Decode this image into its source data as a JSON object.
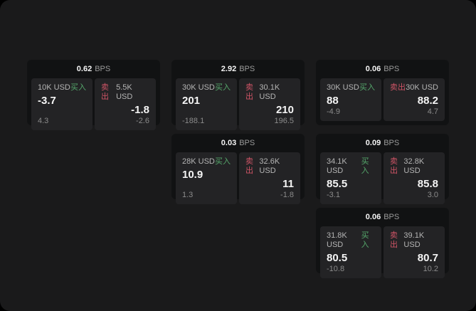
{
  "labels": {
    "buy": "买入",
    "sell": "卖出",
    "bps_unit": "BPS"
  },
  "colors": {
    "buy_green": "#55a76b",
    "sell_red": "#cf5466",
    "surface": "#1a1a1b",
    "card_background": "#111213",
    "panel_background": "#232325"
  },
  "cards": [
    {
      "row": 1,
      "col": 1,
      "bps": "0.62",
      "buy_amount": "10K USD",
      "buy_value": "-3.7",
      "buy_sub": "4.3",
      "sell_amount": "5.5K USD",
      "sell_value": "-1.8",
      "sell_sub": "-2.6"
    },
    {
      "row": 1,
      "col": 2,
      "bps": "2.92",
      "buy_amount": "30K USD",
      "buy_value": "201",
      "buy_sub": "-188.1",
      "sell_amount": "30.1K USD",
      "sell_value": "210",
      "sell_sub": "196.5"
    },
    {
      "row": 1,
      "col": 3,
      "bps": "0.06",
      "buy_amount": "30K USD",
      "buy_value": "88",
      "buy_sub": "-4.9",
      "sell_amount": "30K USD",
      "sell_value": "88.2",
      "sell_sub": "4.7"
    },
    {
      "row": 2,
      "col": 2,
      "bps": "0.03",
      "buy_amount": "28K USD",
      "buy_value": "10.9",
      "buy_sub": "1.3",
      "sell_amount": "32.6K USD",
      "sell_value": "11",
      "sell_sub": "-1.8"
    },
    {
      "row": 2,
      "col": 3,
      "bps": "0.09",
      "buy_amount": "34.1K USD",
      "buy_value": "85.5",
      "buy_sub": "-3.1",
      "sell_amount": "32.8K USD",
      "sell_value": "85.8",
      "sell_sub": "3.0"
    },
    {
      "row": 3,
      "col": 3,
      "bps": "0.06",
      "buy_amount": "31.8K USD",
      "buy_value": "80.5",
      "buy_sub": "-10.8",
      "sell_amount": "39.1K USD",
      "sell_value": "80.7",
      "sell_sub": "10.2"
    }
  ]
}
